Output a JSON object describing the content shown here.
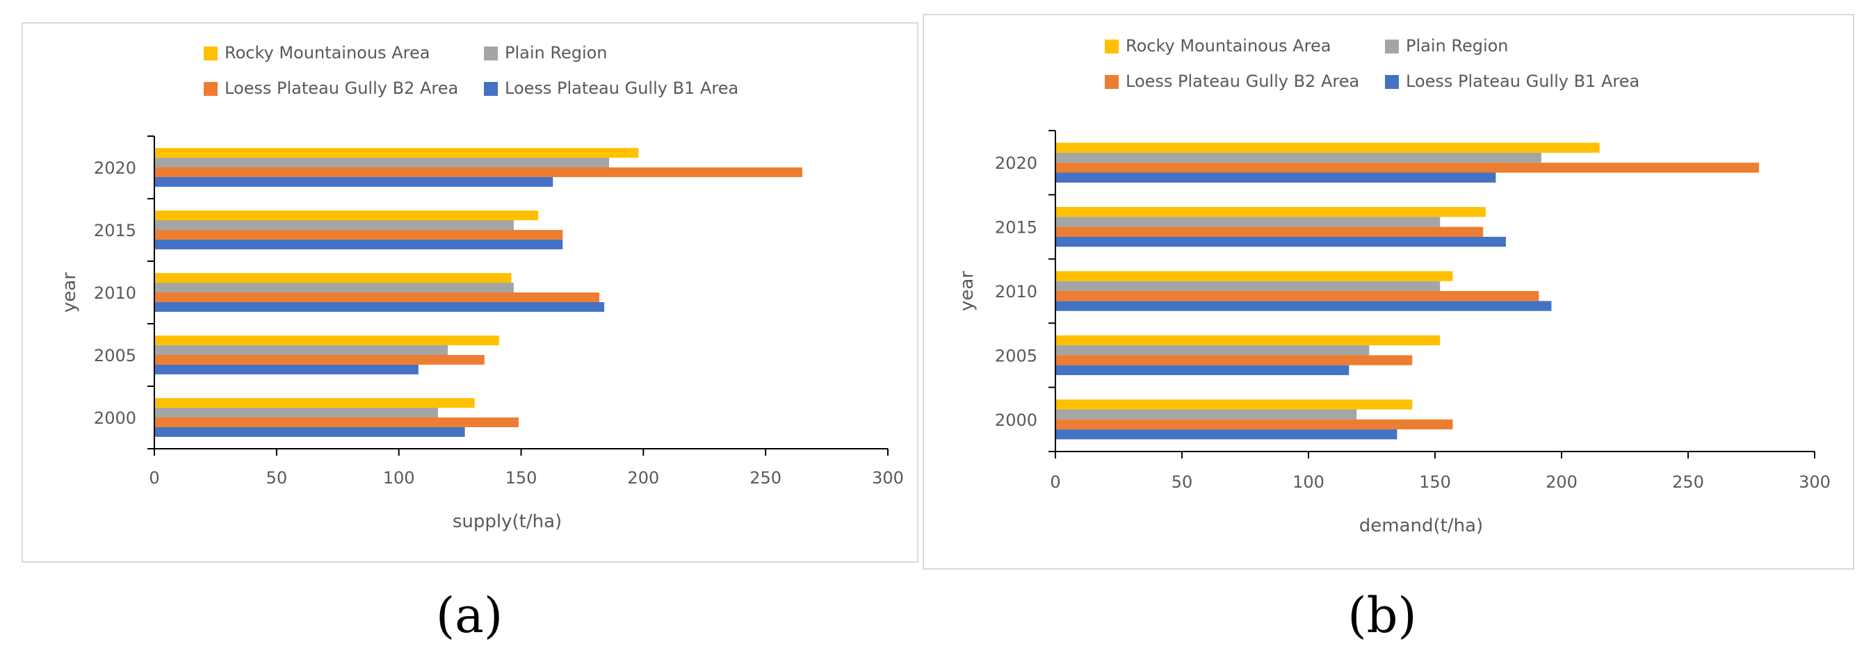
{
  "colors": {
    "rocky": "#ffc000",
    "plain": "#a5a5a5",
    "b2": "#ed7d31",
    "b1": "#4472c4",
    "axis": "#000000",
    "text": "#595959"
  },
  "chart_data": [
    {
      "type": "bar",
      "orientation": "horizontal",
      "panel_label": "(a)",
      "title": "",
      "xlabel": "supply(t/ha)",
      "ylabel": "year",
      "xlim": [
        0,
        300
      ],
      "xticks": [
        "0",
        "50",
        "100",
        "150",
        "200",
        "250",
        "300"
      ],
      "categories": [
        "2000",
        "2005",
        "2010",
        "2015",
        "2020"
      ],
      "legend_position": "top",
      "legend_rows": [
        [
          "Rocky Mountainous Area",
          "Plain Region"
        ],
        [
          "Loess Plateau Gully B2 Area",
          "Loess Plateau Gully B1 Area"
        ]
      ],
      "series": [
        {
          "name": "Rocky Mountainous Area",
          "key": "rocky",
          "values": [
            131,
            141,
            146,
            157,
            198
          ]
        },
        {
          "name": "Plain Region",
          "key": "plain",
          "values": [
            116,
            120,
            147,
            147,
            186
          ]
        },
        {
          "name": "Loess Plateau Gully B2 Area",
          "key": "b2",
          "values": [
            149,
            135,
            182,
            167,
            265
          ]
        },
        {
          "name": "Loess Plateau Gully B1 Area",
          "key": "b1",
          "values": [
            127,
            108,
            184,
            167,
            163
          ]
        }
      ]
    },
    {
      "type": "bar",
      "orientation": "horizontal",
      "panel_label": "(b)",
      "title": "",
      "xlabel": "demand(t/ha)",
      "ylabel": "year",
      "xlim": [
        0,
        300
      ],
      "xticks": [
        "0",
        "50",
        "100",
        "150",
        "200",
        "250",
        "300"
      ],
      "categories": [
        "2000",
        "2005",
        "2010",
        "2015",
        "2020"
      ],
      "legend_position": "top",
      "legend_rows": [
        [
          "Rocky Mountainous Area",
          "Plain Region"
        ],
        [
          "Loess Plateau Gully B2 Area",
          "Loess Plateau Gully B1 Area"
        ]
      ],
      "series": [
        {
          "name": "Rocky Mountainous Area",
          "key": "rocky",
          "values": [
            141,
            152,
            157,
            170,
            215
          ]
        },
        {
          "name": "Plain Region",
          "key": "plain",
          "values": [
            119,
            124,
            152,
            152,
            192
          ]
        },
        {
          "name": "Loess Plateau Gully B2 Area",
          "key": "b2",
          "values": [
            157,
            141,
            191,
            169,
            278
          ]
        },
        {
          "name": "Loess Plateau Gully B1 Area",
          "key": "b1",
          "values": [
            135,
            116,
            196,
            178,
            174
          ]
        }
      ]
    }
  ]
}
